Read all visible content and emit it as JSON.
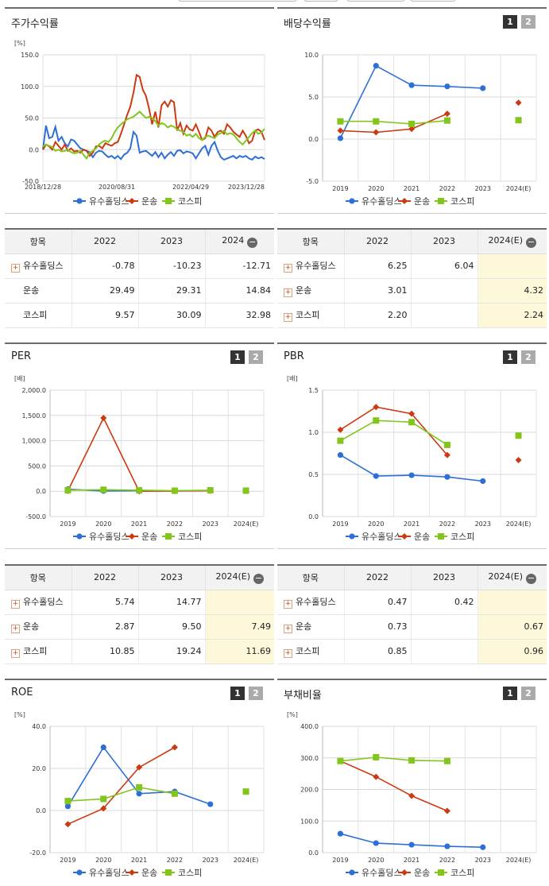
{
  "colors": {
    "holdings": "#2e6fd6",
    "transport": "#cc3a12",
    "kospi": "#82c61c"
  },
  "legend": [
    "유수홀딩스",
    "운송",
    "코스피"
  ],
  "pages": [
    "1",
    "2"
  ],
  "stock_return": {
    "title": "주가수익률",
    "table": {
      "headers": [
        "항목",
        "2022",
        "2023",
        "2024"
      ],
      "rows": [
        {
          "name": "유수홀딩스",
          "values": [
            "-0.78",
            "-10.23",
            "-12.71"
          ]
        },
        {
          "name": "운송",
          "values": [
            "29.49",
            "29.31",
            "14.84"
          ]
        },
        {
          "name": "코스피",
          "values": [
            "9.57",
            "30.09",
            "32.98"
          ]
        }
      ]
    }
  },
  "dividend": {
    "title": "배당수익률",
    "table": {
      "headers": [
        "항목",
        "2022",
        "2023",
        "2024(E)"
      ],
      "rows": [
        {
          "name": "유수홀딩스",
          "values": [
            "6.25",
            "6.04",
            ""
          ]
        },
        {
          "name": "운송",
          "values": [
            "3.01",
            "",
            "4.32"
          ]
        },
        {
          "name": "코스피",
          "values": [
            "2.20",
            "",
            "2.24"
          ]
        }
      ]
    }
  },
  "per": {
    "title": "PER",
    "table": {
      "headers": [
        "항목",
        "2022",
        "2023",
        "2024(E)"
      ],
      "rows": [
        {
          "name": "유수홀딩스",
          "values": [
            "5.74",
            "14.77",
            ""
          ]
        },
        {
          "name": "운송",
          "values": [
            "2.87",
            "9.50",
            "7.49"
          ]
        },
        {
          "name": "코스피",
          "values": [
            "10.85",
            "19.24",
            "11.69"
          ]
        }
      ]
    }
  },
  "pbr": {
    "title": "PBR",
    "table": {
      "headers": [
        "항목",
        "2022",
        "2023",
        "2024(E)"
      ],
      "rows": [
        {
          "name": "유수홀딩스",
          "values": [
            "0.47",
            "0.42",
            ""
          ]
        },
        {
          "name": "운송",
          "values": [
            "0.73",
            "",
            "0.67"
          ]
        },
        {
          "name": "코스피",
          "values": [
            "0.85",
            "",
            "0.96"
          ]
        }
      ]
    }
  },
  "roe": {
    "title": "ROE"
  },
  "debt": {
    "title": "부채비율"
  },
  "chart_data": [
    {
      "id": "stock_return",
      "type": "line",
      "unit": "[%]",
      "ylim": [
        -50,
        150
      ],
      "yticks": [
        "150.0",
        "100.0",
        "50.0",
        "0.0",
        "-50.0"
      ],
      "xticks": [
        "2018/12/28",
        "2020/08/31",
        "2022/04/29",
        "2023/12/28"
      ],
      "series": [
        {
          "name": "유수홀딩스",
          "values": [
            0,
            38,
            18,
            20,
            36,
            14,
            20,
            10,
            5,
            16,
            14,
            8,
            2,
            0,
            -2,
            -4,
            -12,
            -5,
            -2,
            -3,
            -8,
            -12,
            -10,
            -14,
            -10,
            -15,
            -8,
            -5,
            2,
            28,
            22,
            -5,
            -3,
            -2,
            -6,
            -10,
            -4,
            -12,
            -5,
            -14,
            -8,
            -4,
            -10,
            -2,
            -1,
            -6,
            -3,
            -4,
            -6,
            -14,
            -6,
            2,
            6,
            -8,
            6,
            12,
            -2,
            -12,
            -16,
            -14,
            -12,
            -10,
            -14,
            -10,
            -12,
            -10,
            -14,
            -16,
            -11,
            -14,
            -12,
            -15
          ]
        },
        {
          "name": "운송",
          "values": [
            0,
            8,
            5,
            0,
            12,
            6,
            0,
            8,
            -2,
            2,
            -3,
            -2,
            -5,
            0,
            -2,
            -10,
            -5,
            5,
            6,
            2,
            10,
            8,
            6,
            10,
            12,
            25,
            40,
            55,
            68,
            90,
            118,
            115,
            95,
            85,
            65,
            40,
            60,
            35,
            70,
            76,
            68,
            78,
            75,
            30,
            42,
            25,
            38,
            32,
            30,
            40,
            28,
            15,
            18,
            35,
            30,
            20,
            28,
            30,
            25,
            40,
            35,
            28,
            24,
            20,
            30,
            22,
            10,
            14,
            30,
            32,
            28,
            15
          ]
        },
        {
          "name": "코스피",
          "values": [
            5,
            8,
            6,
            4,
            -2,
            0,
            -3,
            -2,
            0,
            -4,
            -6,
            -5,
            -2,
            -8,
            -14,
            -5,
            -2,
            2,
            8,
            12,
            14,
            12,
            18,
            28,
            35,
            40,
            44,
            48,
            50,
            52,
            56,
            60,
            55,
            50,
            52,
            50,
            45,
            38,
            42,
            40,
            35,
            38,
            36,
            32,
            30,
            28,
            22,
            24,
            20,
            25,
            18,
            15,
            20,
            22,
            20,
            18,
            24,
            26,
            30,
            24,
            26,
            24,
            18,
            12,
            8,
            14,
            20,
            26,
            30,
            25,
            27,
            33
          ]
        }
      ]
    },
    {
      "id": "dividend",
      "type": "line",
      "unit": "",
      "categories": [
        "2019",
        "2020",
        "2021",
        "2022",
        "2023",
        "2024(E)"
      ],
      "ylim": [
        -5,
        10
      ],
      "yticks": [
        "10.0",
        "5.0",
        "0.0",
        "-5.0"
      ],
      "series": [
        {
          "name": "유수홀딩스",
          "values": [
            0.1,
            8.7,
            6.4,
            6.25,
            6.04,
            null
          ]
        },
        {
          "name": "운송",
          "values": [
            1.0,
            0.8,
            1.2,
            3.01,
            null,
            4.32
          ]
        },
        {
          "name": "코스피",
          "values": [
            2.1,
            2.1,
            1.8,
            2.2,
            null,
            2.24
          ]
        }
      ]
    },
    {
      "id": "per",
      "type": "line",
      "unit": "[배]",
      "categories": [
        "2019",
        "2020",
        "2021",
        "2022",
        "2023",
        "2024(E)"
      ],
      "ylim": [
        -500,
        2000
      ],
      "yticks": [
        "2,000.0",
        "1,500.0",
        "1,000.0",
        "500.0",
        "0.0",
        "-500.0"
      ],
      "series": [
        {
          "name": "유수홀딩스",
          "values": [
            40,
            5,
            10,
            5.74,
            14.77,
            null
          ]
        },
        {
          "name": "운송",
          "values": [
            5,
            1450,
            0,
            2.87,
            9.5,
            7.49
          ]
        },
        {
          "name": "코스피",
          "values": [
            20,
            30,
            20,
            10.85,
            19.24,
            11.69
          ]
        }
      ]
    },
    {
      "id": "pbr",
      "type": "line",
      "unit": "[배]",
      "categories": [
        "2019",
        "2020",
        "2021",
        "2022",
        "2023",
        "2024(E)"
      ],
      "ylim": [
        0,
        1.5
      ],
      "yticks": [
        "1.5",
        "1.0",
        "0.5",
        "0.0"
      ],
      "series": [
        {
          "name": "유수홀딩스",
          "values": [
            0.73,
            0.48,
            0.49,
            0.47,
            0.42,
            null
          ]
        },
        {
          "name": "운송",
          "values": [
            1.03,
            1.3,
            1.22,
            0.73,
            null,
            0.67
          ]
        },
        {
          "name": "코스피",
          "values": [
            0.9,
            1.14,
            1.12,
            0.85,
            null,
            0.96
          ]
        }
      ]
    },
    {
      "id": "roe",
      "type": "line",
      "unit": "[%]",
      "categories": [
        "2019",
        "2020",
        "2021",
        "2022",
        "2023",
        "2024(E)"
      ],
      "ylim": [
        -20,
        40
      ],
      "yticks": [
        "40.0",
        "20.0",
        "0.0",
        "-20.0"
      ],
      "series": [
        {
          "name": "유수홀딩스",
          "values": [
            2.0,
            30.0,
            8.0,
            9.0,
            3.0,
            null
          ]
        },
        {
          "name": "운송",
          "values": [
            -6.5,
            1.0,
            20.5,
            30.0,
            null,
            null
          ]
        },
        {
          "name": "코스피",
          "values": [
            4.5,
            5.5,
            11.0,
            8.0,
            null,
            9.0
          ]
        }
      ]
    },
    {
      "id": "debt",
      "type": "line",
      "unit": "[%]",
      "categories": [
        "2019",
        "2020",
        "2021",
        "2022",
        "2023",
        "2024(E)"
      ],
      "ylim": [
        0,
        400
      ],
      "yticks": [
        "400.0",
        "300.0",
        "200.0",
        "100.0",
        "0.0"
      ],
      "series": [
        {
          "name": "유수홀딩스",
          "values": [
            60,
            30,
            25,
            20,
            17,
            null
          ]
        },
        {
          "name": "운송",
          "values": [
            290,
            240,
            180,
            132,
            null,
            null
          ]
        },
        {
          "name": "코스피",
          "values": [
            290,
            302,
            292,
            290,
            null,
            null
          ]
        }
      ]
    }
  ]
}
